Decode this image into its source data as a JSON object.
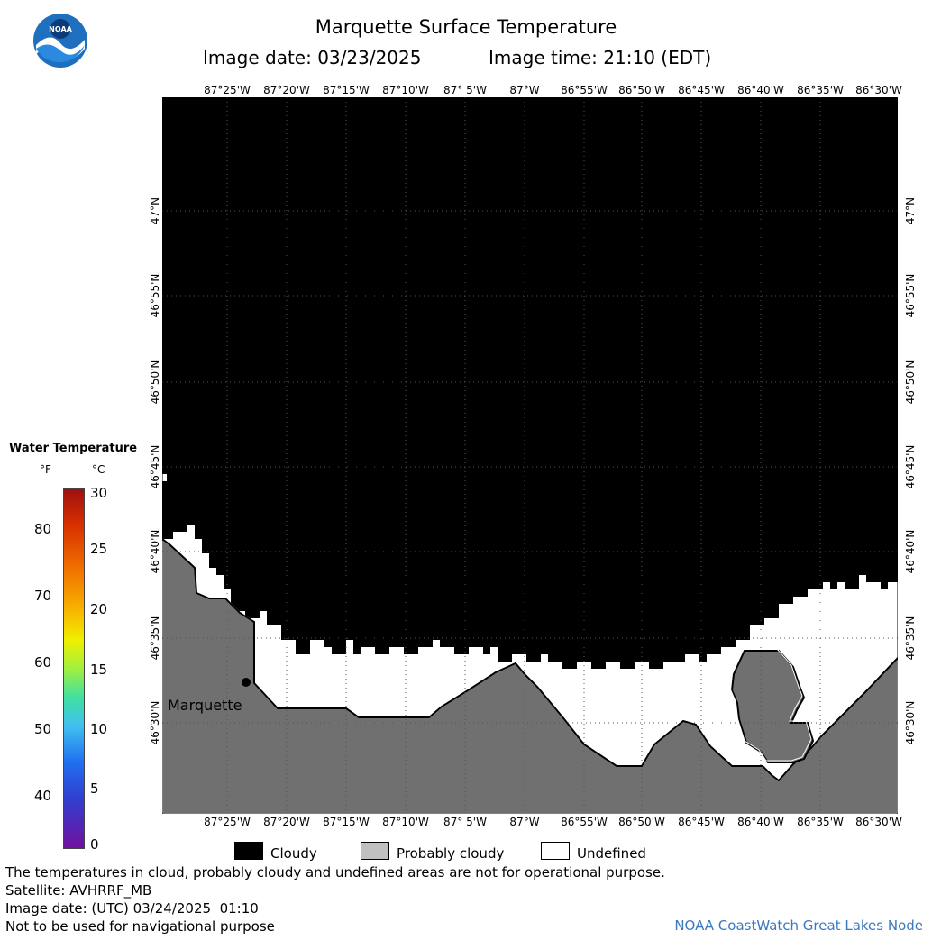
{
  "header": {
    "title": "Marquette Surface Temperature",
    "image_date_label": "Image date: 03/23/2025",
    "image_time_label": "Image time: 21:10 (EDT)"
  },
  "logo": {
    "text": "NOAA"
  },
  "axes": {
    "lon_ticks": [
      "87°25'W",
      "87°20'W",
      "87°15'W",
      "87°10'W",
      "87° 5'W",
      "87°W",
      "86°55'W",
      "86°50'W",
      "86°45'W",
      "86°40'W",
      "86°35'W",
      "86°30'W"
    ],
    "lat_ticks": [
      "47°N",
      "46°55'N",
      "46°50'N",
      "46°45'N",
      "46°40'N",
      "46°35'N",
      "46°30'N"
    ]
  },
  "map": {
    "place_label": "Marquette",
    "colors": {
      "cloud": "#000000",
      "land": "#707070",
      "undefined": "#ffffff",
      "grid": "#555555"
    }
  },
  "legend": {
    "title": "Water Temperature",
    "unit_f": "°F",
    "unit_c": "°C",
    "f_ticks": [
      "80",
      "70",
      "60",
      "50",
      "40"
    ],
    "c_ticks": [
      "30",
      "25",
      "20",
      "15",
      "10",
      "5",
      "0"
    ]
  },
  "key": {
    "cloudy": "Cloudy",
    "probably_cloudy": "Probably cloudy",
    "undefined": "Undefined",
    "colors": {
      "cloudy": "#000000",
      "probably_cloudy": "#c0c0c0",
      "undefined": "#ffffff"
    }
  },
  "footer": {
    "note": "The temperatures in cloud, probably cloudy and undefined areas are not for operational purpose.",
    "satellite": "Satellite: AVHRRF_MB",
    "utc_date": "Image date: (UTC) 03/24/2025  01:10",
    "disclaimer": "Not to be used for navigational purpose",
    "credit": "NOAA CoastWatch Great Lakes Node"
  }
}
